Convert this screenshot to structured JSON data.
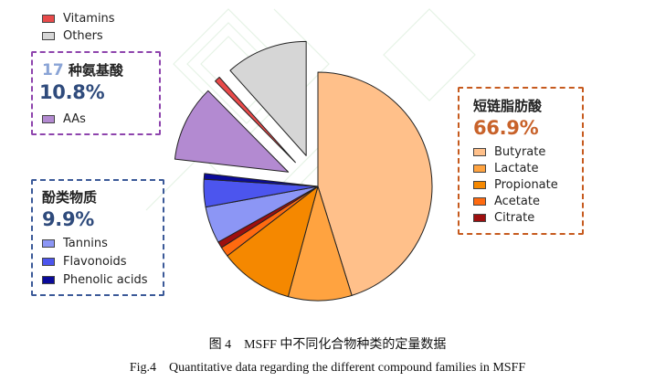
{
  "colors": {
    "aa_border": "#8e44ad",
    "phenol_border": "#3b5998",
    "scfa_border": "#c65a1e",
    "aa_count": "#8aa4d6",
    "aa_pct": "#2f4b7c",
    "phenol_pct": "#2f4b7c",
    "scfa_pct": "#c8622a"
  },
  "top_legend": [
    {
      "label": "Vitamins",
      "color": "#e84a4a"
    },
    {
      "label": "Others",
      "color": "#d6d6d6"
    }
  ],
  "groups": {
    "amino_acids": {
      "count": "17",
      "name": "种氨基酸",
      "percent": "10.8%",
      "legend": [
        {
          "label": "AAs",
          "color": "#b38ad1"
        }
      ]
    },
    "phenolics": {
      "name": "酚类物质",
      "percent": "9.9%",
      "legend": [
        {
          "label": "Tannins",
          "color": "#8c96f5"
        },
        {
          "label": "Flavonoids",
          "color": "#4c55ee"
        },
        {
          "label": "Phenolic acids",
          "color": "#0a0a9a"
        }
      ]
    },
    "scfa": {
      "name": "短链脂肪酸",
      "percent": "66.9%",
      "legend": [
        {
          "label": "Butyrate",
          "color": "#ffc08a"
        },
        {
          "label": "Lactate",
          "color": "#ffa340"
        },
        {
          "label": "Propionate",
          "color": "#f58800"
        },
        {
          "label": "Acetate",
          "color": "#ff6a10"
        },
        {
          "label": "Citrate",
          "color": "#9e0f0f"
        }
      ]
    }
  },
  "caption": {
    "zh": "图 4　MSFF 中不同化合物种类的定量数据",
    "en": "Fig.4　Quantitative data regarding the different compound families in MSFF"
  },
  "chart_data": {
    "type": "pie",
    "title": "",
    "unit": "%",
    "start": "12 o'clock, clockwise",
    "slices": [
      {
        "name": "Butyrate",
        "value": 45.2,
        "color": "#ffc08a",
        "group": "短链脂肪酸"
      },
      {
        "name": "Lactate",
        "value": 9.0,
        "color": "#ffa340",
        "group": "短链脂肪酸"
      },
      {
        "name": "Propionate",
        "value": 10.4,
        "color": "#f58800",
        "group": "短链脂肪酸"
      },
      {
        "name": "Acetate",
        "value": 1.4,
        "color": "#ff6a10",
        "group": "短链脂肪酸"
      },
      {
        "name": "Citrate",
        "value": 0.9,
        "color": "#9e0f0f",
        "group": "短链脂肪酸"
      },
      {
        "name": "Tannins",
        "value": 5.2,
        "color": "#8c96f5",
        "group": "酚类物质"
      },
      {
        "name": "Flavonoids",
        "value": 3.9,
        "color": "#4c55ee",
        "group": "酚类物质"
      },
      {
        "name": "Phenolic acids",
        "value": 0.8,
        "color": "#0a0a9a",
        "group": "酚类物质"
      },
      {
        "name": "AAs",
        "value": 10.8,
        "color": "#b38ad1",
        "group": "种氨基酸",
        "exploded": true
      },
      {
        "name": "Vitamins",
        "value": 0.8,
        "color": "#e84a4a",
        "group": "Vitamins",
        "exploded": true
      },
      {
        "name": "Others",
        "value": 11.6,
        "color": "#d6d6d6",
        "group": "Others",
        "exploded": true
      }
    ]
  }
}
